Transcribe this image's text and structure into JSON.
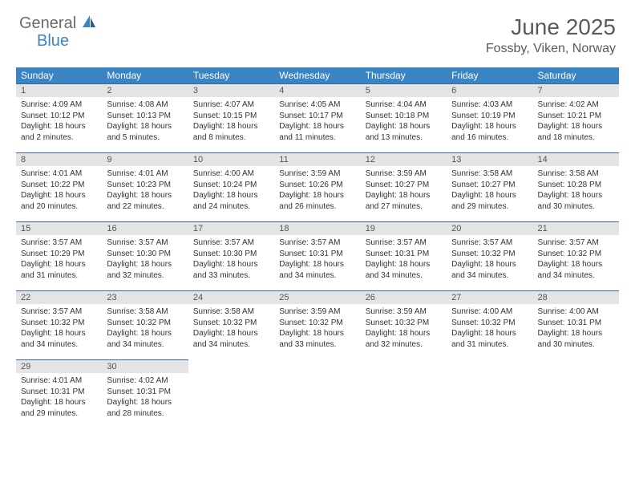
{
  "logo": {
    "part1": "General",
    "part2": "Blue"
  },
  "title": "June 2025",
  "location": "Fossby, Viken, Norway",
  "colors": {
    "header_bg": "#3b84c4",
    "daynum_bg": "#e4e4e4",
    "border_top": "#3b6a9a",
    "text": "#333333"
  },
  "weekdays": [
    "Sunday",
    "Monday",
    "Tuesday",
    "Wednesday",
    "Thursday",
    "Friday",
    "Saturday"
  ],
  "weeks": [
    [
      {
        "num": "1",
        "sunrise": "Sunrise: 4:09 AM",
        "sunset": "Sunset: 10:12 PM",
        "daylight": "Daylight: 18 hours and 2 minutes."
      },
      {
        "num": "2",
        "sunrise": "Sunrise: 4:08 AM",
        "sunset": "Sunset: 10:13 PM",
        "daylight": "Daylight: 18 hours and 5 minutes."
      },
      {
        "num": "3",
        "sunrise": "Sunrise: 4:07 AM",
        "sunset": "Sunset: 10:15 PM",
        "daylight": "Daylight: 18 hours and 8 minutes."
      },
      {
        "num": "4",
        "sunrise": "Sunrise: 4:05 AM",
        "sunset": "Sunset: 10:17 PM",
        "daylight": "Daylight: 18 hours and 11 minutes."
      },
      {
        "num": "5",
        "sunrise": "Sunrise: 4:04 AM",
        "sunset": "Sunset: 10:18 PM",
        "daylight": "Daylight: 18 hours and 13 minutes."
      },
      {
        "num": "6",
        "sunrise": "Sunrise: 4:03 AM",
        "sunset": "Sunset: 10:19 PM",
        "daylight": "Daylight: 18 hours and 16 minutes."
      },
      {
        "num": "7",
        "sunrise": "Sunrise: 4:02 AM",
        "sunset": "Sunset: 10:21 PM",
        "daylight": "Daylight: 18 hours and 18 minutes."
      }
    ],
    [
      {
        "num": "8",
        "sunrise": "Sunrise: 4:01 AM",
        "sunset": "Sunset: 10:22 PM",
        "daylight": "Daylight: 18 hours and 20 minutes."
      },
      {
        "num": "9",
        "sunrise": "Sunrise: 4:01 AM",
        "sunset": "Sunset: 10:23 PM",
        "daylight": "Daylight: 18 hours and 22 minutes."
      },
      {
        "num": "10",
        "sunrise": "Sunrise: 4:00 AM",
        "sunset": "Sunset: 10:24 PM",
        "daylight": "Daylight: 18 hours and 24 minutes."
      },
      {
        "num": "11",
        "sunrise": "Sunrise: 3:59 AM",
        "sunset": "Sunset: 10:26 PM",
        "daylight": "Daylight: 18 hours and 26 minutes."
      },
      {
        "num": "12",
        "sunrise": "Sunrise: 3:59 AM",
        "sunset": "Sunset: 10:27 PM",
        "daylight": "Daylight: 18 hours and 27 minutes."
      },
      {
        "num": "13",
        "sunrise": "Sunrise: 3:58 AM",
        "sunset": "Sunset: 10:27 PM",
        "daylight": "Daylight: 18 hours and 29 minutes."
      },
      {
        "num": "14",
        "sunrise": "Sunrise: 3:58 AM",
        "sunset": "Sunset: 10:28 PM",
        "daylight": "Daylight: 18 hours and 30 minutes."
      }
    ],
    [
      {
        "num": "15",
        "sunrise": "Sunrise: 3:57 AM",
        "sunset": "Sunset: 10:29 PM",
        "daylight": "Daylight: 18 hours and 31 minutes."
      },
      {
        "num": "16",
        "sunrise": "Sunrise: 3:57 AM",
        "sunset": "Sunset: 10:30 PM",
        "daylight": "Daylight: 18 hours and 32 minutes."
      },
      {
        "num": "17",
        "sunrise": "Sunrise: 3:57 AM",
        "sunset": "Sunset: 10:30 PM",
        "daylight": "Daylight: 18 hours and 33 minutes."
      },
      {
        "num": "18",
        "sunrise": "Sunrise: 3:57 AM",
        "sunset": "Sunset: 10:31 PM",
        "daylight": "Daylight: 18 hours and 34 minutes."
      },
      {
        "num": "19",
        "sunrise": "Sunrise: 3:57 AM",
        "sunset": "Sunset: 10:31 PM",
        "daylight": "Daylight: 18 hours and 34 minutes."
      },
      {
        "num": "20",
        "sunrise": "Sunrise: 3:57 AM",
        "sunset": "Sunset: 10:32 PM",
        "daylight": "Daylight: 18 hours and 34 minutes."
      },
      {
        "num": "21",
        "sunrise": "Sunrise: 3:57 AM",
        "sunset": "Sunset: 10:32 PM",
        "daylight": "Daylight: 18 hours and 34 minutes."
      }
    ],
    [
      {
        "num": "22",
        "sunrise": "Sunrise: 3:57 AM",
        "sunset": "Sunset: 10:32 PM",
        "daylight": "Daylight: 18 hours and 34 minutes."
      },
      {
        "num": "23",
        "sunrise": "Sunrise: 3:58 AM",
        "sunset": "Sunset: 10:32 PM",
        "daylight": "Daylight: 18 hours and 34 minutes."
      },
      {
        "num": "24",
        "sunrise": "Sunrise: 3:58 AM",
        "sunset": "Sunset: 10:32 PM",
        "daylight": "Daylight: 18 hours and 34 minutes."
      },
      {
        "num": "25",
        "sunrise": "Sunrise: 3:59 AM",
        "sunset": "Sunset: 10:32 PM",
        "daylight": "Daylight: 18 hours and 33 minutes."
      },
      {
        "num": "26",
        "sunrise": "Sunrise: 3:59 AM",
        "sunset": "Sunset: 10:32 PM",
        "daylight": "Daylight: 18 hours and 32 minutes."
      },
      {
        "num": "27",
        "sunrise": "Sunrise: 4:00 AM",
        "sunset": "Sunset: 10:32 PM",
        "daylight": "Daylight: 18 hours and 31 minutes."
      },
      {
        "num": "28",
        "sunrise": "Sunrise: 4:00 AM",
        "sunset": "Sunset: 10:31 PM",
        "daylight": "Daylight: 18 hours and 30 minutes."
      }
    ],
    [
      {
        "num": "29",
        "sunrise": "Sunrise: 4:01 AM",
        "sunset": "Sunset: 10:31 PM",
        "daylight": "Daylight: 18 hours and 29 minutes."
      },
      {
        "num": "30",
        "sunrise": "Sunrise: 4:02 AM",
        "sunset": "Sunset: 10:31 PM",
        "daylight": "Daylight: 18 hours and 28 minutes."
      },
      null,
      null,
      null,
      null,
      null
    ]
  ]
}
